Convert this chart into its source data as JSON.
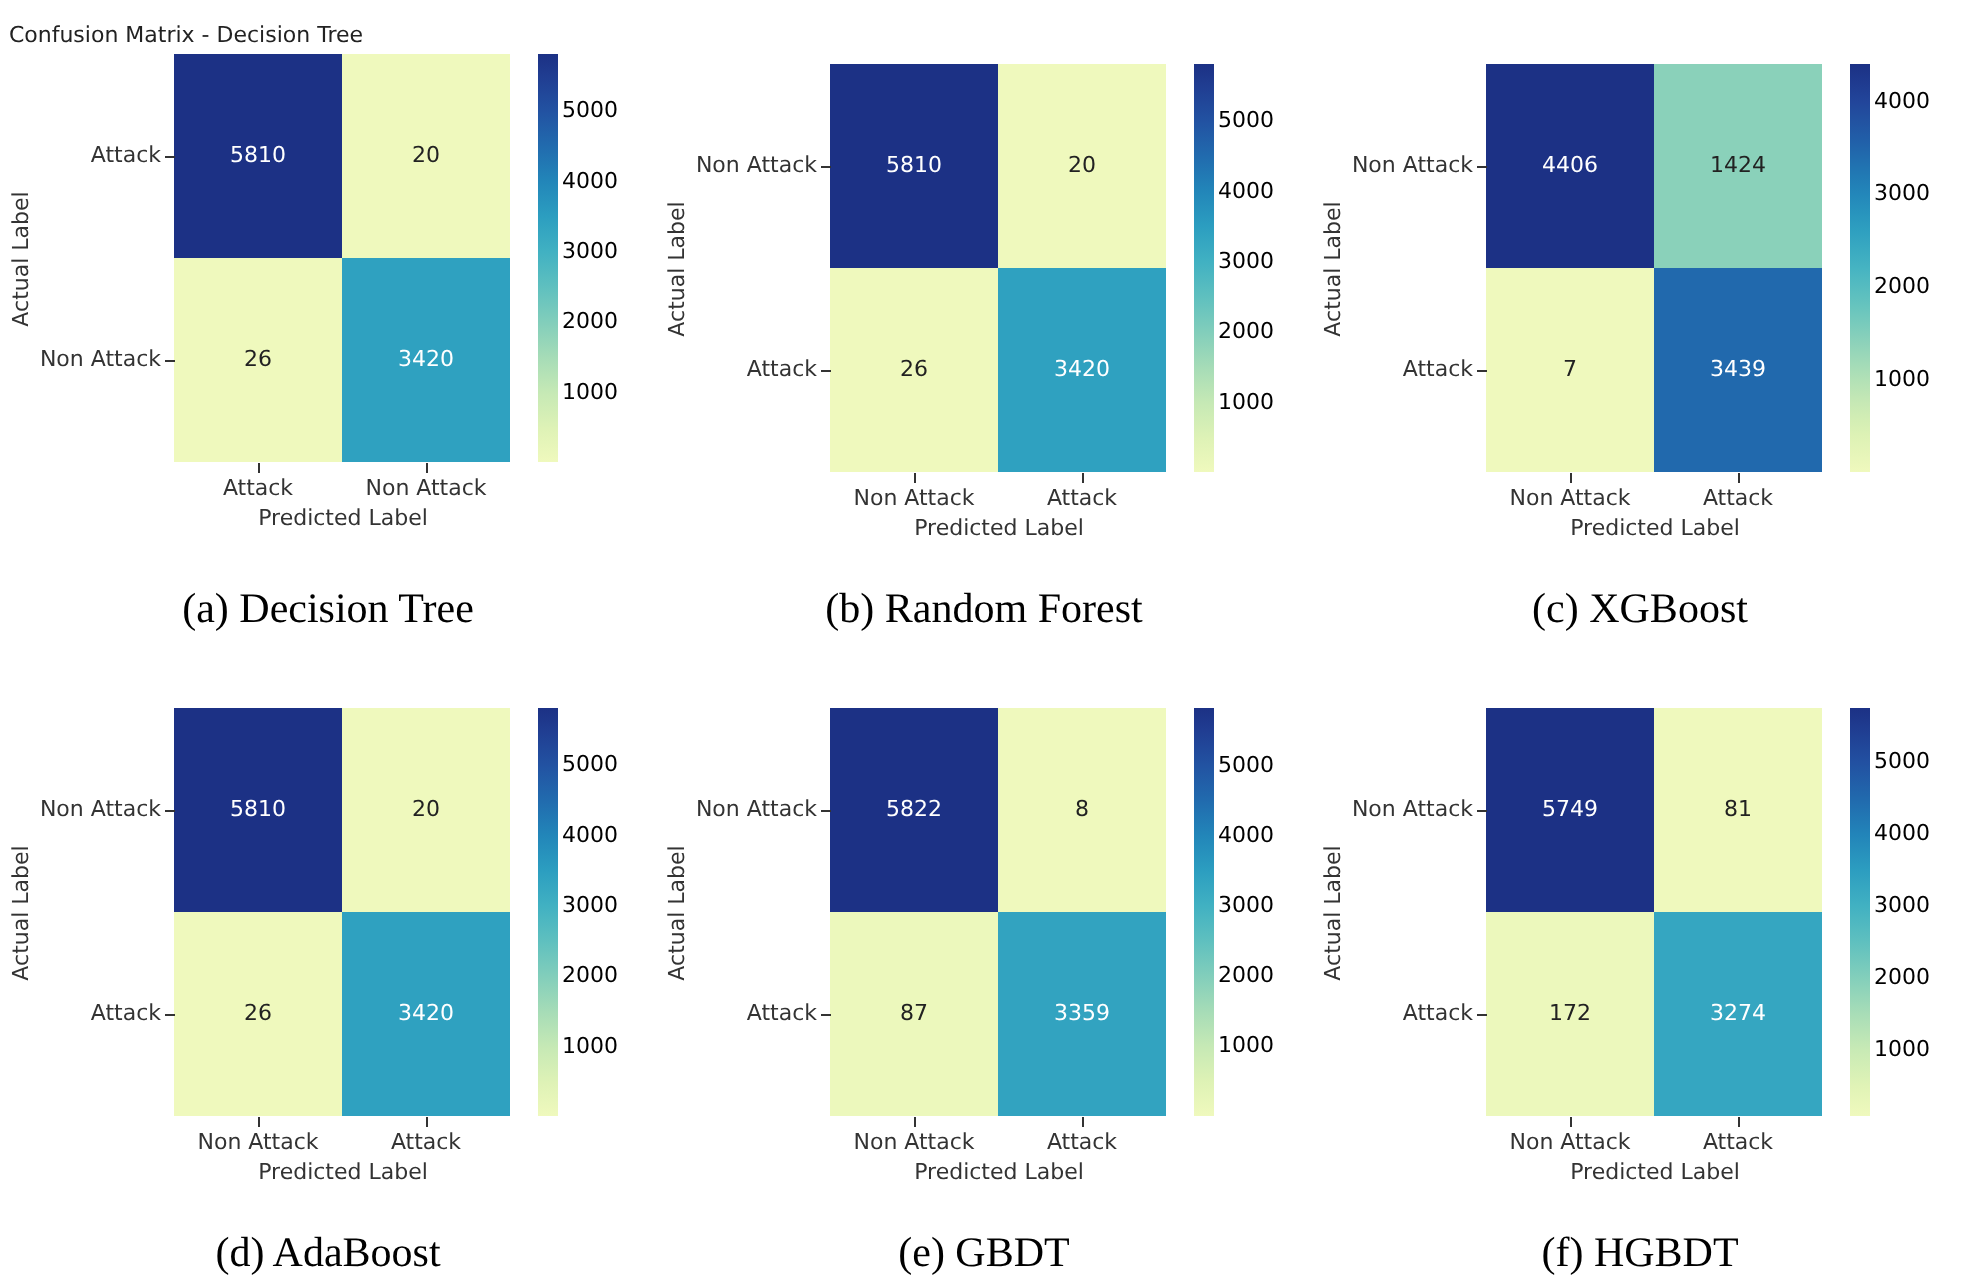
{
  "chart_data": [
    {
      "type": "heatmap",
      "title": "Confusion Matrix - Decision Tree",
      "categories": [
        "Attack",
        "Non Attack"
      ],
      "y_categories": [
        "Attack",
        "Non Attack"
      ],
      "cells": [
        [
          5810,
          20
        ],
        [
          26,
          3420
        ]
      ],
      "data_labels": true,
      "clim": [
        20,
        5810
      ],
      "cticks": [
        1000,
        2000,
        3000,
        4000,
        5000
      ],
      "xlabel": "Predicted Label",
      "ylabel": "Actual Label",
      "annotations": [
        "(a) Decision Tree"
      ]
    },
    {
      "type": "heatmap",
      "categories": [
        "Non Attack",
        "Attack"
      ],
      "y_categories": [
        "Non Attack",
        "Attack"
      ],
      "cells": [
        [
          5810,
          20
        ],
        [
          26,
          3420
        ]
      ],
      "data_labels": true,
      "clim": [
        20,
        5810
      ],
      "cticks": [
        1000,
        2000,
        3000,
        4000,
        5000
      ],
      "xlabel": "Predicted Label",
      "ylabel": "Actual Label",
      "annotations": [
        "(b) Random Forest"
      ]
    },
    {
      "type": "heatmap",
      "categories": [
        "Non Attack",
        "Attack"
      ],
      "y_categories": [
        "Non Attack",
        "Attack"
      ],
      "cells": [
        [
          4406,
          1424
        ],
        [
          7,
          3439
        ]
      ],
      "data_labels": true,
      "clim": [
        7,
        4406
      ],
      "cticks": [
        1000,
        2000,
        3000,
        4000
      ],
      "xlabel": "Predicted Label",
      "ylabel": "Actual Label",
      "annotations": [
        "(c) XGBoost"
      ]
    },
    {
      "type": "heatmap",
      "categories": [
        "Non Attack",
        "Attack"
      ],
      "y_categories": [
        "Non Attack",
        "Attack"
      ],
      "cells": [
        [
          5810,
          20
        ],
        [
          26,
          3420
        ]
      ],
      "data_labels": true,
      "clim": [
        20,
        5810
      ],
      "cticks": [
        1000,
        2000,
        3000,
        4000,
        5000
      ],
      "xlabel": "Predicted Label",
      "ylabel": "Actual Label",
      "annotations": [
        "(d) AdaBoost"
      ]
    },
    {
      "type": "heatmap",
      "categories": [
        "Non Attack",
        "Attack"
      ],
      "y_categories": [
        "Non Attack",
        "Attack"
      ],
      "cells": [
        [
          5822,
          8
        ],
        [
          87,
          3359
        ]
      ],
      "data_labels": true,
      "clim": [
        8,
        5822
      ],
      "cticks": [
        1000,
        2000,
        3000,
        4000,
        5000
      ],
      "xlabel": "Predicted Label",
      "ylabel": "Actual Label",
      "annotations": [
        "(e) GBDT"
      ]
    },
    {
      "type": "heatmap",
      "categories": [
        "Non Attack",
        "Attack"
      ],
      "y_categories": [
        "Non Attack",
        "Attack"
      ],
      "cells": [
        [
          5749,
          81
        ],
        [
          172,
          3274
        ]
      ],
      "data_labels": true,
      "clim": [
        81,
        5749
      ],
      "cticks": [
        1000,
        2000,
        3000,
        4000,
        5000
      ],
      "xlabel": "Predicted Label",
      "ylabel": "Actual Label",
      "annotations": [
        "(f) HGBDT"
      ]
    }
  ]
}
